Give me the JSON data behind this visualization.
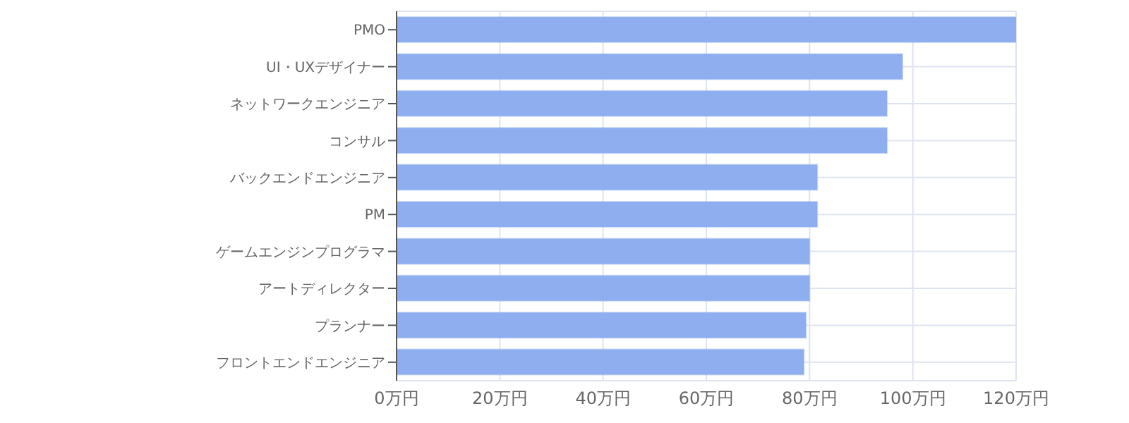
{
  "chart_data": {
    "type": "bar",
    "orientation": "horizontal",
    "categories": [
      "PMO",
      "UI・UXデザイナー",
      "ネットワークエンジニア",
      "コンサル",
      "バックエンドエンジニア",
      "PM",
      "ゲームエンジンプログラマ",
      "アートディレクター",
      "プランナー",
      "フロントエンドエンジニア"
    ],
    "values": [
      120,
      98,
      95,
      95,
      81.5,
      81.5,
      80,
      80,
      79.3,
      78.9
    ],
    "color": "#8eaeef",
    "xlim": [
      0,
      120
    ],
    "xticks": [
      {
        "value": 0,
        "label": "0万円"
      },
      {
        "value": 20,
        "label": "20万円"
      },
      {
        "value": 40,
        "label": "40万円"
      },
      {
        "value": 60,
        "label": "60万円"
      },
      {
        "value": 80,
        "label": "80万円"
      },
      {
        "value": 100,
        "label": "100万円"
      },
      {
        "value": 120,
        "label": "120万円"
      }
    ],
    "grid": true
  }
}
